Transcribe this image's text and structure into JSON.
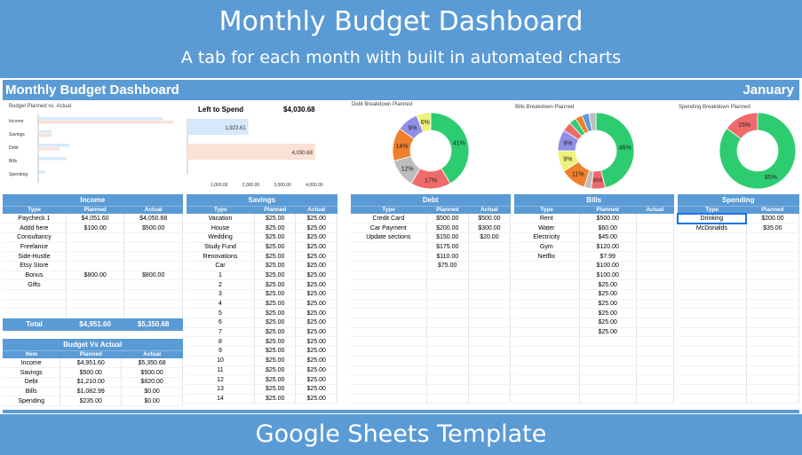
{
  "banner": {
    "title": "Monthly Budget Dashboard",
    "subtitle": "A tab for each month with built in automated charts",
    "footer": "Google Sheets Template"
  },
  "dashboard": {
    "title": "Monthly Budget Dashboard",
    "month": "January"
  },
  "colors": {
    "header_blue": "#5b9bd5",
    "planned_bar": "#d6e9fb",
    "actual_bar": "#fbe1d6",
    "green": "#2ecc71",
    "red": "#ef6b6b",
    "orange": "#f07f2b",
    "grey": "#bdbdbd",
    "purple": "#8f8fe8",
    "yellow": "#eef27a"
  },
  "charts": {
    "planned_vs_actual": {
      "title": "Budget Planned vs. Actual",
      "chart_data": {
        "type": "bar",
        "orientation": "horizontal",
        "categories": [
          "Income",
          "Savings",
          "Debt",
          "Bills",
          "Spending"
        ],
        "series": [
          {
            "values": [
              4951.6,
              500.0,
              1210.0,
              1082.99,
              235.0
            ],
            "color": "#d6e9fb"
          },
          {
            "values": [
              5350.68,
              500.0,
              820.0,
              0.0,
              0.0
            ],
            "color": "#fbe1d6"
          }
        ],
        "xlim": [
          0,
          5500
        ]
      }
    },
    "left_to_spend": {
      "label": "Left to Spend",
      "amount": "$4,030.68",
      "chart_data": {
        "type": "bar",
        "orientation": "horizontal",
        "values": [
          1923.61,
          4030.68
        ],
        "data_labels": [
          "1,923.61",
          "4,030.68"
        ],
        "ticks": [
          "1,000.00",
          "2,000.00",
          "3,000.00",
          "4,000.00"
        ],
        "xlim": [
          0,
          4200
        ]
      }
    },
    "debt_breakdown": {
      "title": "Debt Breakdown Planned",
      "chart_data": {
        "type": "pie",
        "donut": true,
        "slices": [
          {
            "label": "41%",
            "value": 41,
            "color": "#2ecc71"
          },
          {
            "label": "17%",
            "value": 17,
            "color": "#ef6b6b"
          },
          {
            "label": "12%",
            "value": 12,
            "color": "#bdbdbd"
          },
          {
            "label": "14%",
            "value": 14,
            "color": "#f07f2b"
          },
          {
            "label": "9%",
            "value": 9,
            "color": "#8f8fe8"
          },
          {
            "label": "6%",
            "value": 6,
            "color": "#eef27a"
          }
        ]
      }
    },
    "bills_breakdown": {
      "title": "Bills Breakdown Planned",
      "chart_data": {
        "type": "pie",
        "donut": true,
        "slices": [
          {
            "label": "46%",
            "value": 46,
            "color": "#2ecc71"
          },
          {
            "label": "6%",
            "value": 6,
            "color": "#ef6b6b"
          },
          {
            "label": "",
            "value": 3,
            "color": "#bdbdbd"
          },
          {
            "label": "11%",
            "value": 11,
            "color": "#f07f2b"
          },
          {
            "label": "9%",
            "value": 9,
            "color": "#eef27a"
          },
          {
            "label": "9%",
            "value": 9,
            "color": "#8f8fe8"
          },
          {
            "label": "",
            "value": 4,
            "color": "#ef6b6b"
          },
          {
            "label": "",
            "value": 3,
            "color": "#2ecc71"
          },
          {
            "label": "",
            "value": 3,
            "color": "#f07f2b"
          },
          {
            "label": "",
            "value": 3,
            "color": "#5b9bd5"
          },
          {
            "label": "",
            "value": 3,
            "color": "#bdbdbd"
          }
        ]
      }
    },
    "spending_breakdown": {
      "title": "Spending Breakdown Planned",
      "chart_data": {
        "type": "pie",
        "donut": true,
        "slices": [
          {
            "label": "85%",
            "value": 85,
            "color": "#2ecc71"
          },
          {
            "label": "15%",
            "value": 15,
            "color": "#ef6b6b"
          }
        ]
      }
    }
  },
  "tables": {
    "income": {
      "title": "Income",
      "columns": [
        "Type",
        "Planned",
        "Actual"
      ],
      "rows": [
        [
          "Paycheck 1",
          "$4,051.60",
          "$4,050.68"
        ],
        [
          "Addd here",
          "$100.00",
          "$500.00"
        ],
        [
          "Consultancy",
          "",
          ""
        ],
        [
          "Freelance",
          "",
          ""
        ],
        [
          "Side-Hustle",
          "",
          ""
        ],
        [
          "Etsy Store",
          "",
          ""
        ],
        [
          "Bonus",
          "$800.00",
          "$800.00"
        ],
        [
          "Gifts",
          "",
          ""
        ],
        [
          "",
          "",
          ""
        ],
        [
          "",
          "",
          ""
        ],
        [
          "",
          "",
          ""
        ]
      ],
      "total": [
        "Total",
        "$4,951.60",
        "$5,350.68"
      ]
    },
    "budget_vs_actual": {
      "title": "Budget Vs Actual",
      "columns": [
        "Item",
        "Planned",
        "Actual"
      ],
      "rows": [
        [
          "Income",
          "$4,951.60",
          "$5,350.68"
        ],
        [
          "Savings",
          "$500.00",
          "$500.00"
        ],
        [
          "Debt",
          "$1,210.00",
          "$820.00"
        ],
        [
          "Bills",
          "$1,082.99",
          "$0.00"
        ],
        [
          "Spending",
          "$235.00",
          "$0.00"
        ]
      ]
    },
    "savings": {
      "title": "Savings",
      "columns": [
        "Type",
        "Planned",
        "Actual"
      ],
      "rows": [
        [
          "Vacation",
          "$25.00",
          "$25.00"
        ],
        [
          "House",
          "$25.00",
          "$25.00"
        ],
        [
          "Wedding",
          "$25.00",
          "$25.00"
        ],
        [
          "Study Fund",
          "$25.00",
          "$25.00"
        ],
        [
          "Renovations",
          "$25.00",
          "$25.00"
        ],
        [
          "Car",
          "$25.00",
          "$25.00"
        ],
        [
          "1",
          "$25.00",
          "$25.00"
        ],
        [
          "2",
          "$25.00",
          "$25.00"
        ],
        [
          "3",
          "$25.00",
          "$25.00"
        ],
        [
          "4",
          "$25.00",
          "$25.00"
        ],
        [
          "5",
          "$25.00",
          "$25.00"
        ],
        [
          "6",
          "$25.00",
          "$25.00"
        ],
        [
          "7",
          "$25.00",
          "$25.00"
        ],
        [
          "8",
          "$25.00",
          "$25.00"
        ],
        [
          "9",
          "$25.00",
          "$25.00"
        ],
        [
          "10",
          "$25.00",
          "$25.00"
        ],
        [
          "11",
          "$25.00",
          "$25.00"
        ],
        [
          "12",
          "$25.00",
          "$25.00"
        ],
        [
          "13",
          "$25.00",
          "$25.00"
        ],
        [
          "14",
          "$25.00",
          "$25.00"
        ]
      ]
    },
    "debt": {
      "title": "Debt",
      "columns": [
        "Type",
        "Planned",
        "Actual"
      ],
      "rows": [
        [
          "Credit Card",
          "$500.00",
          "$500.00"
        ],
        [
          "Car Payment",
          "$200.00",
          "$300.00"
        ],
        [
          "Update sections",
          "$150.00",
          "$20.00"
        ],
        [
          "",
          "$175.00",
          ""
        ],
        [
          "",
          "$110.00",
          ""
        ],
        [
          "",
          "$75.00",
          ""
        ]
      ]
    },
    "bills": {
      "title": "Bills",
      "columns": [
        "Type",
        "Planned",
        "Actual"
      ],
      "rows": [
        [
          "Rent",
          "$500.00",
          ""
        ],
        [
          "Water",
          "$60.00",
          ""
        ],
        [
          "Electricity",
          "$45.00",
          ""
        ],
        [
          "Gym",
          "$120.00",
          ""
        ],
        [
          "Netflix",
          "$7.99",
          ""
        ],
        [
          "",
          "$100.00",
          ""
        ],
        [
          "",
          "$100.00",
          ""
        ],
        [
          "",
          "$25.00",
          ""
        ],
        [
          "",
          "$25.00",
          ""
        ],
        [
          "",
          "$25.00",
          ""
        ],
        [
          "",
          "$25.00",
          ""
        ],
        [
          "",
          "$25.00",
          ""
        ],
        [
          "",
          "$25.00",
          ""
        ]
      ]
    },
    "spending": {
      "title": "Spending",
      "columns": [
        "Type",
        "Planned"
      ],
      "rows": [
        [
          "Drinking",
          "$200.00"
        ],
        [
          "McDonalds",
          "$35.00"
        ]
      ]
    }
  }
}
